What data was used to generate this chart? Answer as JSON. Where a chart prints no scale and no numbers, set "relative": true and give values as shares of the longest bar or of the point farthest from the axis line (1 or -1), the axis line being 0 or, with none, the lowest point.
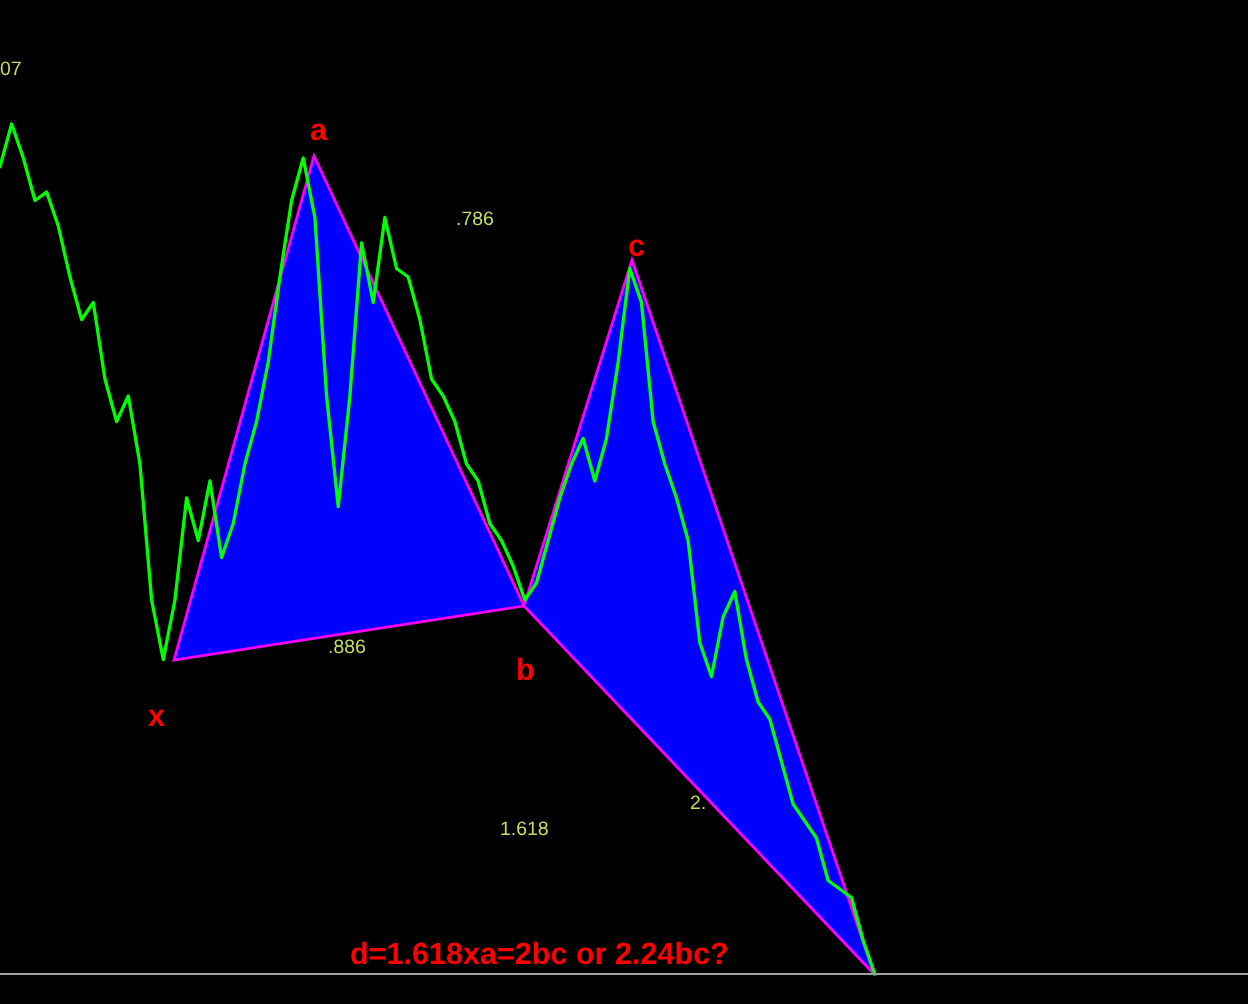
{
  "chart_data": {
    "type": "line",
    "relative": true,
    "categories": [
      null,
      null,
      null,
      null,
      null,
      null,
      null,
      null,
      null,
      null,
      null,
      null,
      null,
      null,
      null,
      null,
      null,
      null,
      null,
      null,
      null,
      null,
      null,
      null,
      null,
      null,
      null,
      null,
      null,
      null,
      null,
      null,
      null,
      null,
      null,
      null,
      null,
      null,
      null,
      null,
      null,
      null,
      null,
      null,
      null,
      null,
      null,
      null,
      null,
      null,
      null,
      null,
      null,
      null,
      null,
      null,
      null,
      null,
      null,
      null,
      null,
      null,
      null,
      null,
      null,
      null,
      null,
      null,
      null,
      null,
      null,
      null,
      null,
      null,
      null,
      null,
      null,
      null,
      null,
      null,
      null,
      null,
      null,
      null,
      null,
      null,
      null,
      null,
      null,
      null,
      null,
      null,
      null,
      null,
      null,
      null,
      null,
      null,
      null,
      null,
      null,
      null,
      null,
      null,
      null,
      null,
      null,
      null
    ],
    "series": [
      {
        "color": "#00ff00",
        "values": [
          0.95,
          1.0,
          0.96,
          0.91,
          0.92,
          0.88,
          0.82,
          0.77,
          0.79,
          0.7,
          0.65,
          0.68,
          0.6,
          0.44,
          0.37,
          0.44,
          0.56,
          0.51,
          0.58,
          0.49,
          0.53,
          0.6,
          0.65,
          0.72,
          0.82,
          0.91,
          0.96,
          0.89,
          0.68,
          0.55,
          0.68,
          0.86,
          0.79,
          0.89,
          0.83,
          0.82,
          0.77,
          0.7,
          0.68,
          0.65,
          0.6,
          0.58,
          0.53,
          0.51,
          0.48,
          0.44,
          0.46,
          0.51,
          0.56,
          0.6,
          0.63,
          0.58,
          0.63,
          0.72,
          0.83,
          0.79,
          0.65,
          0.6,
          0.56,
          0.51,
          0.39,
          0.35,
          0.42,
          0.45,
          0.37,
          0.32,
          0.3,
          0.25,
          0.2,
          0.18,
          0.16,
          0.11,
          0.1,
          0.09,
          0.04,
          0,
          null,
          null,
          null,
          null,
          null,
          null,
          null,
          null,
          null,
          null,
          null,
          null,
          null,
          null,
          null,
          null,
          null,
          null,
          null,
          null,
          null,
          null,
          null,
          null,
          null,
          null,
          null,
          null,
          null,
          null,
          null,
          null
        ]
      }
    ],
    "annotations": [
      "07",
      ".786",
      ".886",
      "1.618",
      "2.",
      "a",
      "b",
      "c",
      "x",
      "d=1.618xa=2bc or 2.24bc?"
    ],
    "grid": false,
    "legend": false
  }
}
